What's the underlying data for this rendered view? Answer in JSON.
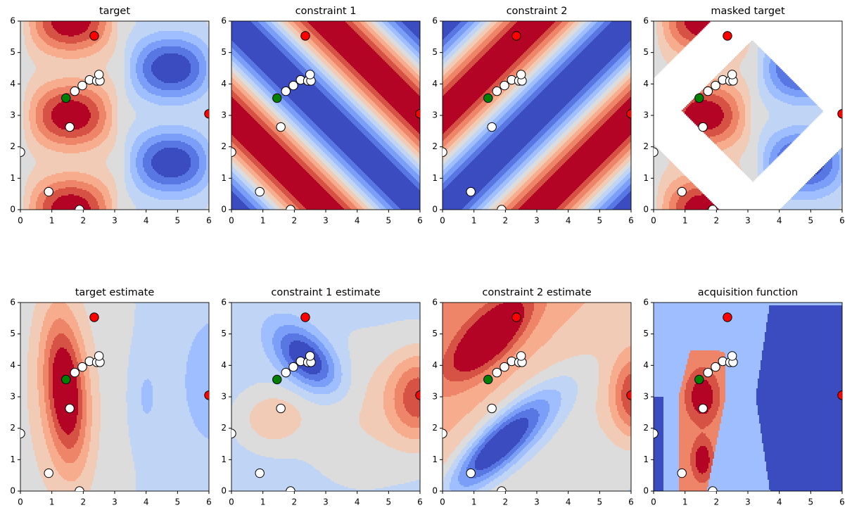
{
  "chart_data": [
    {
      "type": "contour",
      "title": "target",
      "xlim": [
        0,
        6
      ],
      "ylim": [
        0,
        6
      ],
      "xticks": [
        0,
        1,
        2,
        3,
        4,
        5,
        6
      ],
      "yticks": [
        0,
        1,
        2,
        3,
        4,
        5,
        6
      ],
      "series": [
        {
          "color": "#ffffff",
          "x": [
            0,
            0.9,
            1.57,
            1.73,
            1.97,
            2.2,
            2.43,
            2.53,
            2.5,
            1.88
          ],
          "y": [
            1.83,
            0.57,
            2.63,
            3.77,
            3.95,
            4.13,
            4.1,
            4.1,
            4.3,
            0
          ]
        },
        {
          "color": "#008000",
          "x": [
            1.45
          ],
          "y": [
            3.55
          ]
        },
        {
          "color": "#ff0000",
          "x": [
            2.35,
            6
          ],
          "y": [
            5.53,
            3.05
          ]
        }
      ]
    },
    {
      "type": "contour",
      "title": "constraint 1",
      "xlim": [
        0,
        6
      ],
      "ylim": [
        0,
        6
      ],
      "xticks": [
        0,
        1,
        2,
        3,
        4,
        5,
        6
      ],
      "yticks": [
        0,
        1,
        2,
        3,
        4,
        5,
        6
      ],
      "series": [
        {
          "color": "#ffffff",
          "x": [
            0,
            0.9,
            1.57,
            1.73,
            1.97,
            2.2,
            2.43,
            2.53,
            2.5,
            1.88
          ],
          "y": [
            1.83,
            0.57,
            2.63,
            3.77,
            3.95,
            4.13,
            4.1,
            4.1,
            4.3,
            0
          ]
        },
        {
          "color": "#008000",
          "x": [
            1.45
          ],
          "y": [
            3.55
          ]
        },
        {
          "color": "#ff0000",
          "x": [
            2.35,
            6
          ],
          "y": [
            5.53,
            3.05
          ]
        }
      ]
    },
    {
      "type": "contour",
      "title": "constraint 2",
      "xlim": [
        0,
        6
      ],
      "ylim": [
        0,
        6
      ],
      "xticks": [
        0,
        1,
        2,
        3,
        4,
        5,
        6
      ],
      "yticks": [
        0,
        1,
        2,
        3,
        4,
        5,
        6
      ],
      "series": [
        {
          "color": "#ffffff",
          "x": [
            0,
            0.9,
            1.57,
            1.73,
            1.97,
            2.2,
            2.43,
            2.53,
            2.5,
            1.88
          ],
          "y": [
            1.83,
            0.57,
            2.63,
            3.77,
            3.95,
            4.13,
            4.1,
            4.1,
            4.3,
            0
          ]
        },
        {
          "color": "#008000",
          "x": [
            1.45
          ],
          "y": [
            3.55
          ]
        },
        {
          "color": "#ff0000",
          "x": [
            2.35,
            6
          ],
          "y": [
            5.53,
            3.05
          ]
        }
      ]
    },
    {
      "type": "contour",
      "title": "masked target",
      "xlim": [
        0,
        6
      ],
      "ylim": [
        0,
        6
      ],
      "xticks": [
        0,
        1,
        2,
        3,
        4,
        5,
        6
      ],
      "yticks": [
        0,
        1,
        2,
        3,
        4,
        5,
        6
      ],
      "series": [
        {
          "color": "#ffffff",
          "x": [
            0,
            0.9,
            1.57,
            1.73,
            1.97,
            2.2,
            2.43,
            2.53,
            2.5,
            1.88
          ],
          "y": [
            1.83,
            0.57,
            2.63,
            3.77,
            3.95,
            4.13,
            4.1,
            4.1,
            4.3,
            0
          ]
        },
        {
          "color": "#008000",
          "x": [
            1.45
          ],
          "y": [
            3.55
          ]
        },
        {
          "color": "#ff0000",
          "x": [
            2.35,
            6
          ],
          "y": [
            5.53,
            3.05
          ]
        }
      ]
    },
    {
      "type": "contour",
      "title": "target estimate",
      "xlim": [
        0,
        6
      ],
      "ylim": [
        0,
        6
      ],
      "xticks": [
        0,
        1,
        2,
        3,
        4,
        5,
        6
      ],
      "yticks": [
        0,
        1,
        2,
        3,
        4,
        5,
        6
      ],
      "series": [
        {
          "color": "#ffffff",
          "x": [
            0,
            0.9,
            1.57,
            1.73,
            1.97,
            2.2,
            2.43,
            2.53,
            2.5,
            1.88
          ],
          "y": [
            1.83,
            0.57,
            2.63,
            3.77,
            3.95,
            4.13,
            4.1,
            4.1,
            4.3,
            0
          ]
        },
        {
          "color": "#008000",
          "x": [
            1.45
          ],
          "y": [
            3.55
          ]
        },
        {
          "color": "#ff0000",
          "x": [
            2.35,
            6
          ],
          "y": [
            5.53,
            3.05
          ]
        }
      ]
    },
    {
      "type": "contour",
      "title": "constraint 1 estimate",
      "xlim": [
        0,
        6
      ],
      "ylim": [
        0,
        6
      ],
      "xticks": [
        0,
        1,
        2,
        3,
        4,
        5,
        6
      ],
      "yticks": [
        0,
        1,
        2,
        3,
        4,
        5,
        6
      ],
      "series": [
        {
          "color": "#ffffff",
          "x": [
            0,
            0.9,
            1.57,
            1.73,
            1.97,
            2.2,
            2.43,
            2.53,
            2.5,
            1.88
          ],
          "y": [
            1.83,
            0.57,
            2.63,
            3.77,
            3.95,
            4.13,
            4.1,
            4.1,
            4.3,
            0
          ]
        },
        {
          "color": "#008000",
          "x": [
            1.45
          ],
          "y": [
            3.55
          ]
        },
        {
          "color": "#ff0000",
          "x": [
            2.35,
            6
          ],
          "y": [
            5.53,
            3.05
          ]
        }
      ]
    },
    {
      "type": "contour",
      "title": "constraint 2 estimate",
      "xlim": [
        0,
        6
      ],
      "ylim": [
        0,
        6
      ],
      "xticks": [
        0,
        1,
        2,
        3,
        4,
        5,
        6
      ],
      "yticks": [
        0,
        1,
        2,
        3,
        4,
        5,
        6
      ],
      "series": [
        {
          "color": "#ffffff",
          "x": [
            0,
            0.9,
            1.57,
            1.73,
            1.97,
            2.2,
            2.43,
            2.53,
            2.5,
            1.88
          ],
          "y": [
            1.83,
            0.57,
            2.63,
            3.77,
            3.95,
            4.13,
            4.1,
            4.1,
            4.3,
            0
          ]
        },
        {
          "color": "#008000",
          "x": [
            1.45
          ],
          "y": [
            3.55
          ]
        },
        {
          "color": "#ff0000",
          "x": [
            2.35,
            6
          ],
          "y": [
            5.53,
            3.05
          ]
        }
      ]
    },
    {
      "type": "contour",
      "title": "acquisition function",
      "xlim": [
        0,
        6
      ],
      "ylim": [
        0,
        6
      ],
      "xticks": [
        0,
        1,
        2,
        3,
        4,
        5,
        6
      ],
      "yticks": [
        0,
        1,
        2,
        3,
        4,
        5,
        6
      ],
      "series": [
        {
          "color": "#ffffff",
          "x": [
            0,
            0.9,
            1.57,
            1.73,
            1.97,
            2.2,
            2.43,
            2.53,
            2.5,
            1.88
          ],
          "y": [
            1.83,
            0.57,
            2.63,
            3.77,
            3.95,
            4.13,
            4.1,
            4.1,
            4.3,
            0
          ]
        },
        {
          "color": "#008000",
          "x": [
            1.45
          ],
          "y": [
            3.55
          ]
        },
        {
          "color": "#ff0000",
          "x": [
            2.35,
            6
          ],
          "y": [
            5.53,
            3.05
          ]
        }
      ]
    }
  ]
}
